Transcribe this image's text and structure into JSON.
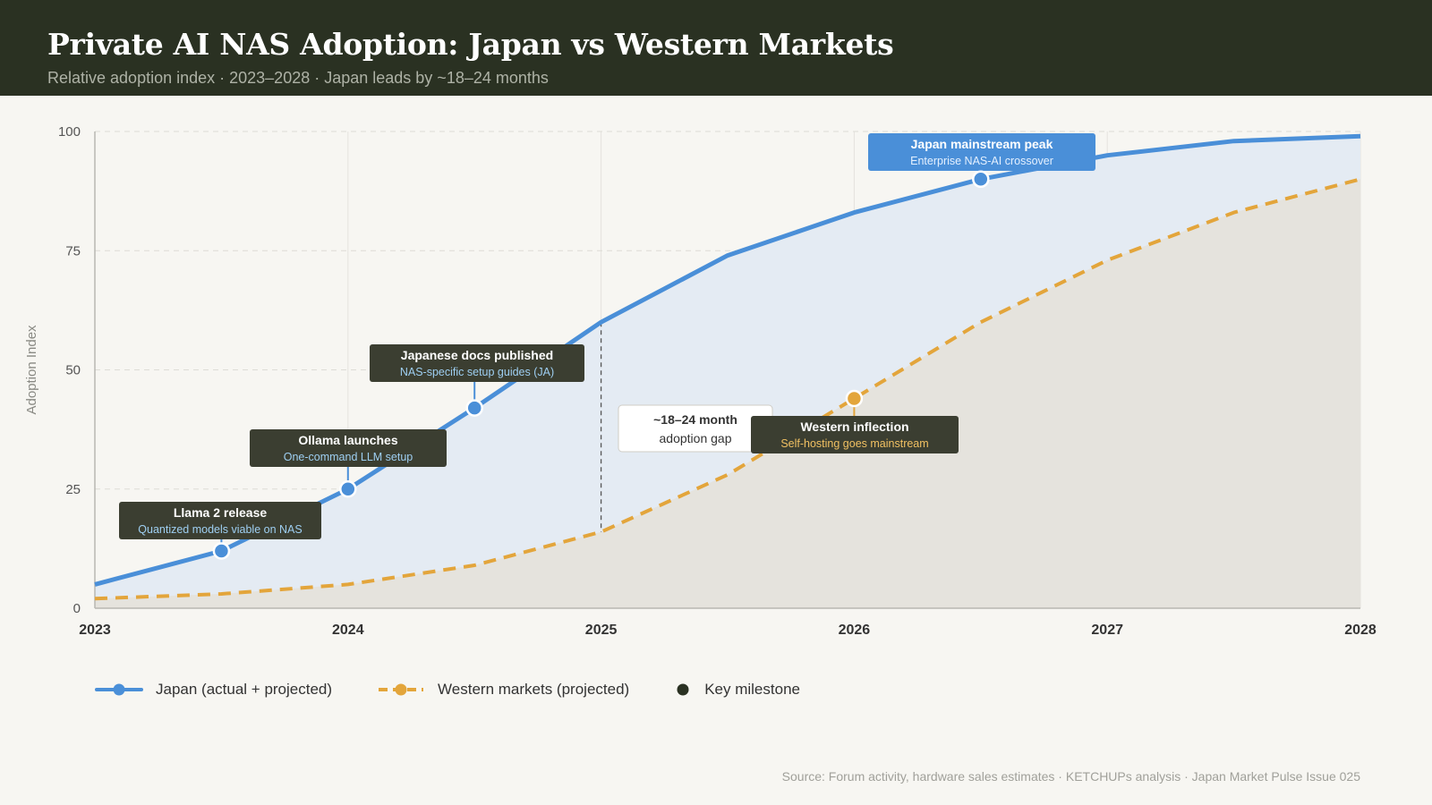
{
  "header": {
    "title": "Private AI NAS Adoption: Japan vs Western Markets",
    "subtitle": "Relative adoption index · 2023–2028 · Japan leads by ~18–24 months"
  },
  "colors": {
    "japan": "#4a8fd8",
    "western": "#e3a53b",
    "milestone": "#2a3122",
    "header_bg": "#2a3122"
  },
  "chart_data": {
    "type": "line",
    "ylabel": "Adoption Index",
    "xlabel": "",
    "xlim": [
      2023,
      2028
    ],
    "ylim": [
      0,
      100
    ],
    "x_ticks": [
      "2023",
      "2024",
      "2025",
      "2026",
      "2027",
      "2028"
    ],
    "y_ticks": [
      "0",
      "25",
      "50",
      "75",
      "100"
    ],
    "grid": true,
    "series": [
      {
        "name": "Japan (actual + projected)",
        "style": "solid",
        "points": [
          [
            2023,
            5
          ],
          [
            2023.5,
            12
          ],
          [
            2024,
            25
          ],
          [
            2024.5,
            42
          ],
          [
            2025,
            60
          ],
          [
            2025.5,
            74
          ],
          [
            2026,
            83
          ],
          [
            2026.5,
            90
          ],
          [
            2027,
            95
          ],
          [
            2027.5,
            98
          ],
          [
            2028,
            99
          ]
        ]
      },
      {
        "name": "Western markets (projected)",
        "style": "dashed",
        "points": [
          [
            2023,
            2
          ],
          [
            2023.5,
            3
          ],
          [
            2024,
            5
          ],
          [
            2024.5,
            9
          ],
          [
            2025,
            16
          ],
          [
            2025.5,
            28
          ],
          [
            2026,
            44
          ],
          [
            2026.5,
            60
          ],
          [
            2027,
            73
          ],
          [
            2027.5,
            83
          ],
          [
            2028,
            90
          ]
        ]
      }
    ],
    "annotations": [
      {
        "series": 0,
        "x": 2023.5,
        "y": 12,
        "title": "Llama 2 release",
        "subtitle": "Quantized models viable on NAS",
        "style": "dark"
      },
      {
        "series": 0,
        "x": 2024,
        "y": 25,
        "title": "Ollama launches",
        "subtitle": "One-command LLM setup",
        "style": "dark"
      },
      {
        "series": 0,
        "x": 2024.5,
        "y": 42,
        "title": "Japanese docs published",
        "subtitle": "NAS-specific setup guides (JA)",
        "style": "dark"
      },
      {
        "series": 1,
        "x": 2026,
        "y": 44,
        "title": "Western inflection",
        "subtitle": "Self-hosting goes mainstream",
        "style": "dark-warm"
      },
      {
        "series": 0,
        "x": 2026.5,
        "y": 90,
        "title": "Japan mainstream peak",
        "subtitle": "Enterprise NAS-AI crossover",
        "style": "blue"
      }
    ],
    "gap_callout": {
      "x": 2025,
      "title": "~18–24 month",
      "subtitle": "adoption gap"
    },
    "legend": [
      {
        "label": "Japan (actual + projected)",
        "kind": "japan"
      },
      {
        "label": "Western markets (projected)",
        "kind": "western"
      },
      {
        "label": "Key milestone",
        "kind": "milestone"
      }
    ],
    "legend_position": "bottom-left"
  },
  "footer": {
    "source": "Source: Forum activity, hardware sales estimates · KETCHUPs analysis · Japan Market Pulse Issue 025"
  }
}
